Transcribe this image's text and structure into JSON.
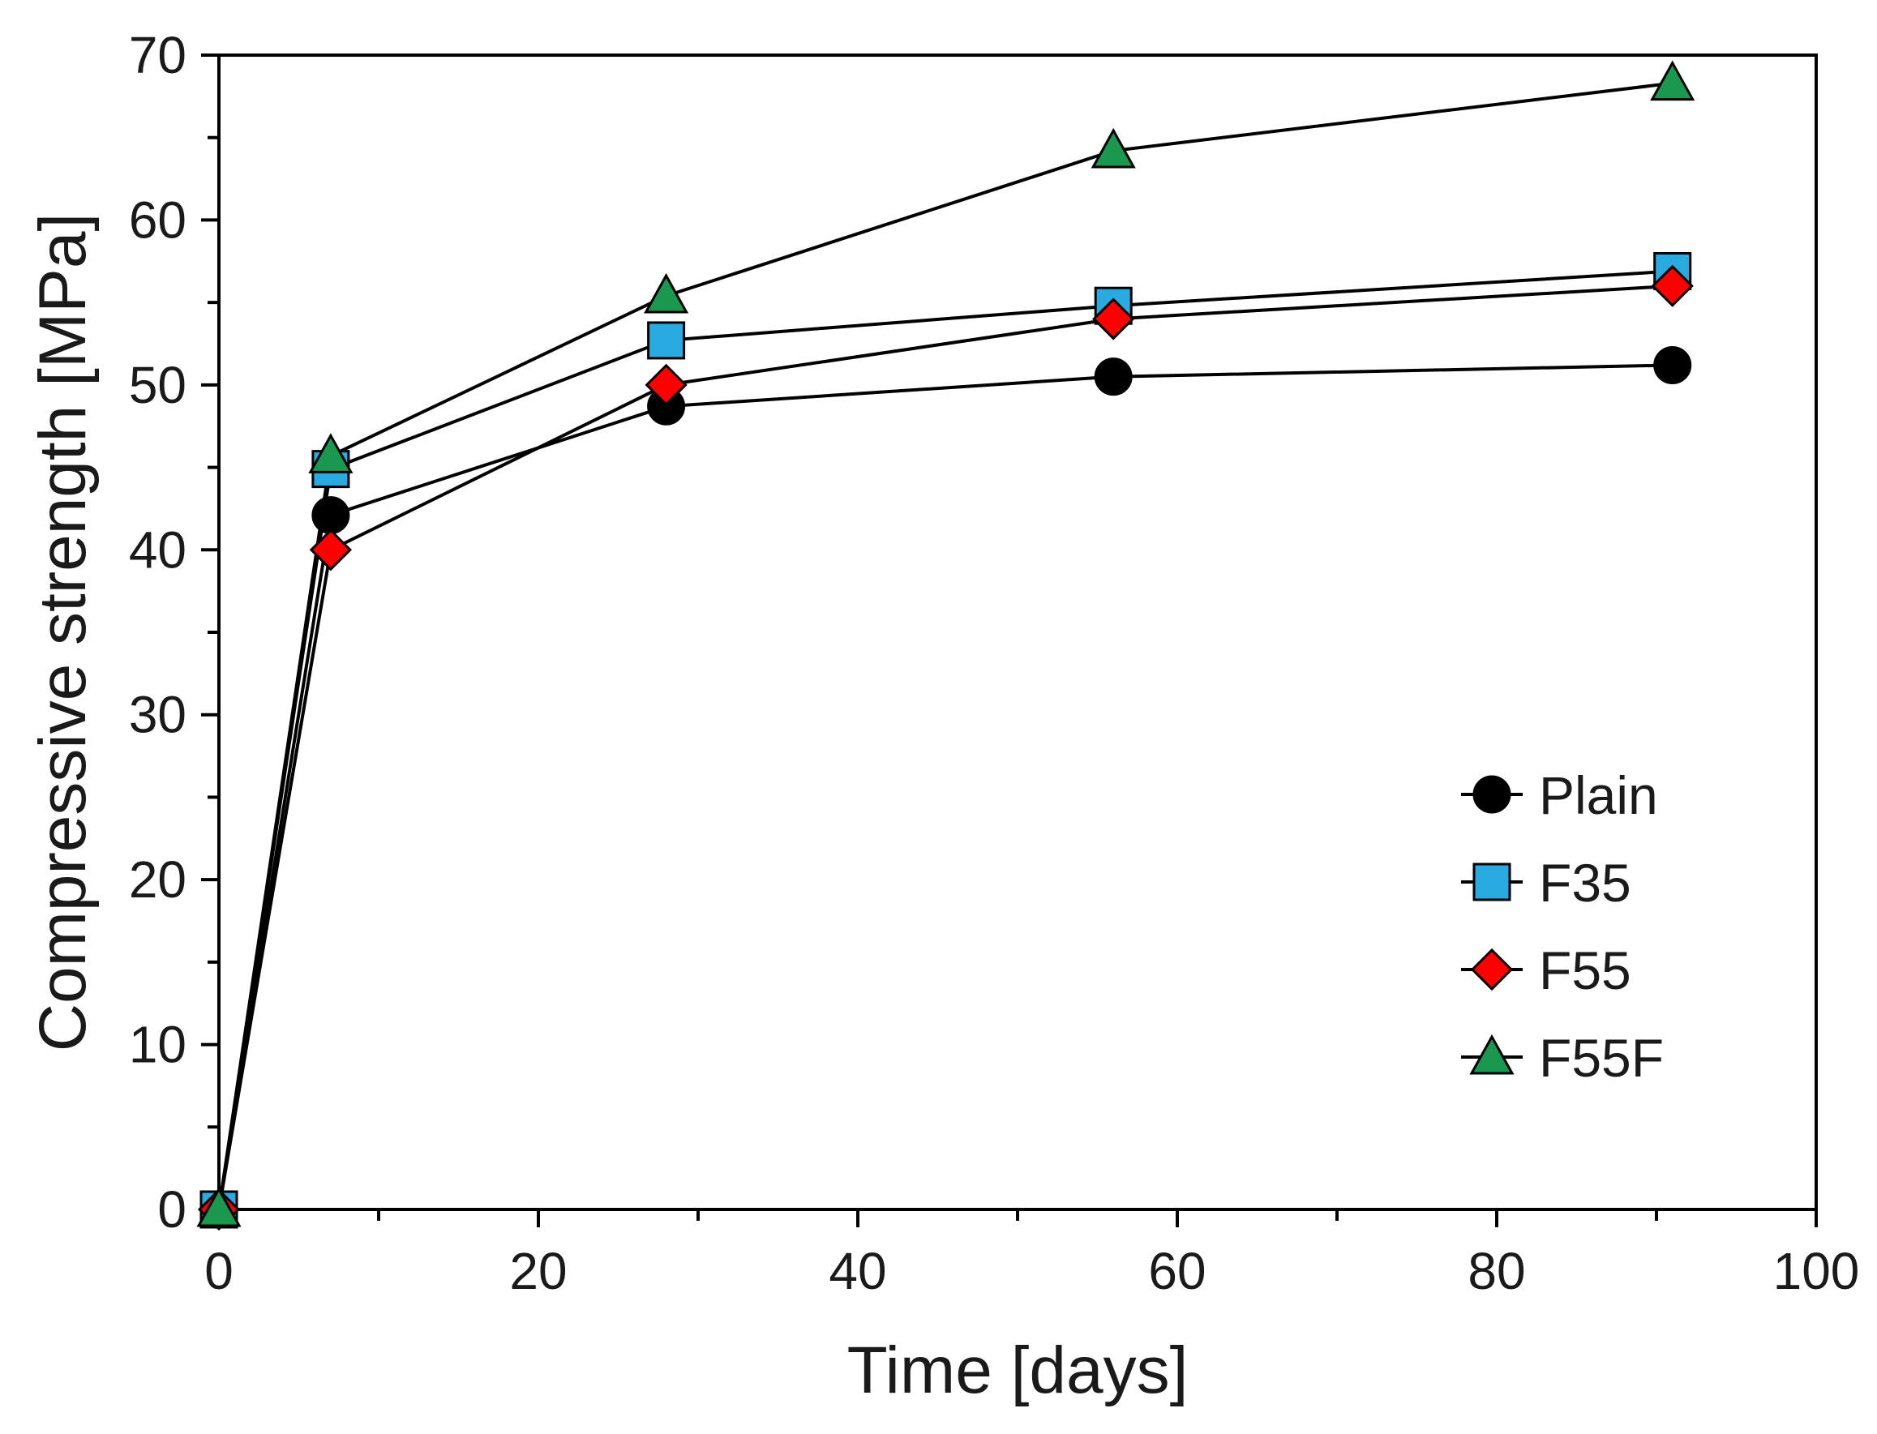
{
  "chart_data": {
    "type": "line",
    "xlabel": "Time [days]",
    "ylabel": "Compressive strength [MPa]",
    "xlim": [
      0,
      100
    ],
    "ylim": [
      0,
      70
    ],
    "x_ticks": [
      0,
      20,
      40,
      60,
      80,
      100
    ],
    "y_ticks": [
      0,
      10,
      20,
      30,
      40,
      50,
      60,
      70
    ],
    "x_tick_labels": [
      "0",
      "20",
      "40",
      "60",
      "80",
      "100"
    ],
    "y_tick_labels": [
      "0",
      "10",
      "20",
      "30",
      "40",
      "50",
      "60",
      "70"
    ],
    "grid": false,
    "legend_position": "right",
    "series": [
      {
        "name": "Plain",
        "marker": "circle",
        "color": "#000000",
        "x": [
          0,
          7,
          28,
          56,
          91
        ],
        "values": [
          0,
          42.1,
          48.7,
          50.5,
          51.2
        ]
      },
      {
        "name": "F35",
        "marker": "square",
        "color": "#29abe2",
        "x": [
          0,
          7,
          28,
          56,
          91
        ],
        "values": [
          0,
          44.9,
          52.7,
          54.8,
          56.9
        ]
      },
      {
        "name": "F55",
        "marker": "diamond",
        "color": "#ff0000",
        "x": [
          0,
          7,
          28,
          56,
          91
        ],
        "values": [
          0,
          40.0,
          50.0,
          54.0,
          56.0
        ]
      },
      {
        "name": "F55F",
        "marker": "triangle",
        "color": "#1a9850",
        "x": [
          0,
          7,
          28,
          56,
          91
        ],
        "values": [
          0,
          45.7,
          55.4,
          64.2,
          68.3
        ]
      }
    ]
  }
}
